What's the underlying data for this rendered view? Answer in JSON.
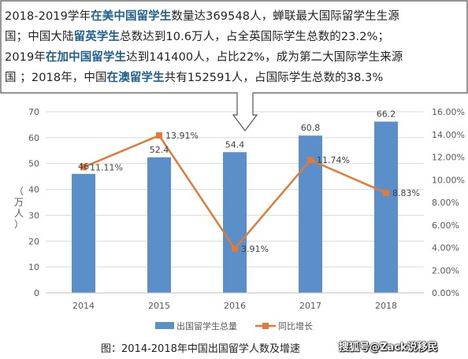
{
  "callout": {
    "lines": [
      [
        {
          "t": "2018-2019学年",
          "h": false
        },
        {
          "t": "在美中国留学生",
          "h": true
        },
        {
          "t": "数量达369548人，蝉联最大国际留学生生源",
          "h": false
        }
      ],
      [
        {
          "t": "国；中国大陆",
          "h": false
        },
        {
          "t": "留英学生",
          "h": true
        },
        {
          "t": "总数达到10.6万人，占全英国际学生总数的23.2%；",
          "h": false
        }
      ],
      [
        {
          "t": "2019年",
          "h": false
        },
        {
          "t": "在加中国留学生",
          "h": true
        },
        {
          "t": "达到141400人，占比22%，成为第二大国际学生来源",
          "h": false
        }
      ],
      [
        {
          "t": "国 ；2018年，中国",
          "h": false
        },
        {
          "t": "在澳留学生",
          "h": true
        },
        {
          "t": "共有152591人，占国际学生总数的38.3%",
          "h": false
        }
      ]
    ]
  },
  "caption": {
    "main": "图：2014-2018年中国出国留学人数及增速",
    "watermark": "搜狐号@Zack说移民"
  },
  "colors": {
    "bar": "#5b8fc9",
    "line": "#e07b39",
    "grid": "#d9d9d9",
    "axis_text": "#595959",
    "callout_border": "#555555",
    "highlight": "#1f5f8b"
  },
  "chart_data": {
    "type": "bar",
    "categories": [
      "2014",
      "2015",
      "2016",
      "2017",
      "2018"
    ],
    "ylabel": "（万人）",
    "ylim": [
      0,
      70
    ],
    "y_ticks": [
      "0",
      "10",
      "20",
      "30",
      "40",
      "50",
      "60",
      "70"
    ],
    "y2lim": [
      0,
      16
    ],
    "y2_ticks": [
      "0.00%",
      "2.00%",
      "4.00%",
      "6.00%",
      "8.00%",
      "10.00%",
      "12.00%",
      "14.00%",
      "16.00%"
    ],
    "grid": true,
    "legend_position": "bottom",
    "series": [
      {
        "name": "出国留学生总量",
        "type": "bar",
        "axis": "left",
        "values": [
          46,
          52.4,
          54.4,
          60.8,
          66.2
        ],
        "labels": [
          "46",
          "52.4",
          "54.4",
          "60.8",
          "66.2"
        ]
      },
      {
        "name": "同比增长",
        "type": "line",
        "axis": "right",
        "values": [
          11.11,
          13.91,
          3.91,
          11.74,
          8.83
        ],
        "labels": [
          "11.11%",
          "13.91%",
          "3.91%",
          "11.74%",
          "8.83%"
        ]
      }
    ]
  }
}
